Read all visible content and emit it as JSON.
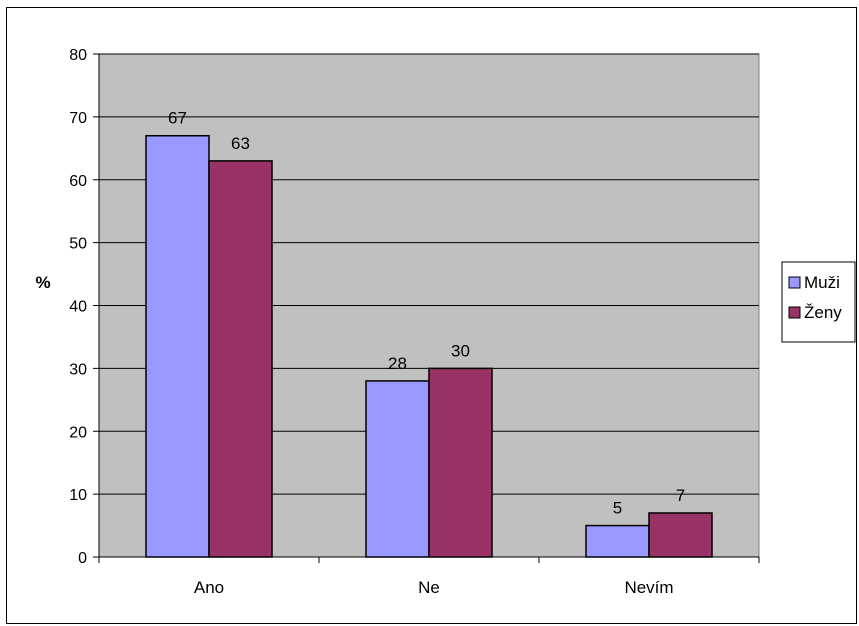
{
  "chart_data": {
    "type": "bar",
    "title": "",
    "xlabel": "",
    "ylabel": "%",
    "ylim": [
      0,
      80
    ],
    "yticks": [
      0,
      10,
      20,
      30,
      40,
      50,
      60,
      70,
      80
    ],
    "grid": true,
    "legend_position": "right",
    "categories": [
      "Ano",
      "Ne",
      "Nevím"
    ],
    "series": [
      {
        "name": "Muži",
        "values": [
          67,
          28,
          5
        ],
        "color": "#9999ff"
      },
      {
        "name": "Ženy",
        "values": [
          63,
          30,
          7
        ],
        "color": "#993366"
      }
    ],
    "plot_background": "#c0c0c0"
  }
}
